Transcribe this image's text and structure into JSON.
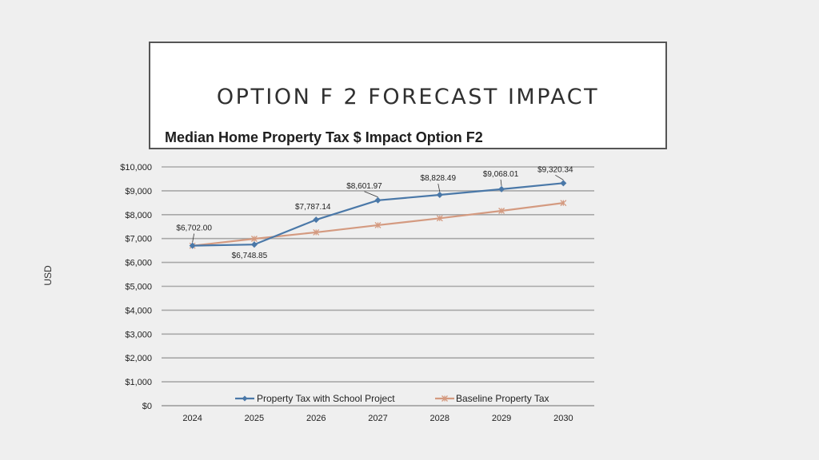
{
  "slide": {
    "title": "OPTION F 2 FORECAST IMPACT",
    "subtitle": "Median Home Property Tax $ Impact Option F2"
  },
  "chart_data": {
    "type": "line",
    "title": "Median Home Property Tax $ Impact Option F2",
    "xlabel": "",
    "ylabel": "USD",
    "categories": [
      "2024",
      "2025",
      "2026",
      "2027",
      "2028",
      "2029",
      "2030"
    ],
    "ylim": [
      0,
      10000
    ],
    "ytick_step": 1000,
    "ytick_labels": [
      "$0",
      "$1,000",
      "$2,000",
      "$3,000",
      "$4,000",
      "$5,000",
      "$6,000",
      "$7,000",
      "$8,000",
      "$9,000",
      "$10,000"
    ],
    "grid": true,
    "legend_position": "bottom-inside",
    "series": [
      {
        "name": "Property Tax with School Project",
        "color": "#4a78a8",
        "marker": "diamond",
        "values": [
          6702.0,
          6748.85,
          7787.14,
          8601.97,
          8828.49,
          9068.01,
          9320.34
        ],
        "labels": [
          "$6,702.00",
          "$6,748.85",
          "$7,787.14",
          "$8,601.97",
          "$8,828.49",
          "$9,068.01",
          "$9,320.34"
        ]
      },
      {
        "name": "Baseline Property Tax",
        "color": "#d49a80",
        "marker": "star",
        "values": [
          6700,
          6990,
          7260,
          7560,
          7850,
          8160,
          8490
        ]
      }
    ]
  }
}
